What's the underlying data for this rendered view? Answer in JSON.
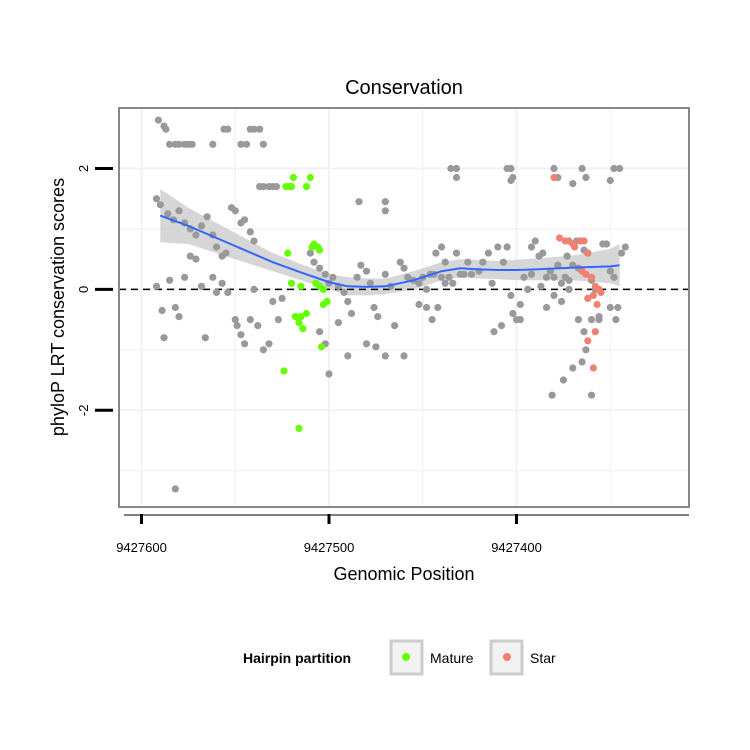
{
  "chart_data": {
    "type": "scatter",
    "title": "Conservation",
    "xlabel": "Genomic Position",
    "ylabel": "phyloP LRT conservation scores",
    "x_reversed": true,
    "xlim": [
      9427308,
      9427612
    ],
    "ylim": [
      -3.6,
      3.0
    ],
    "x_ticks": [
      {
        "value": 9427600,
        "label": "9427600"
      },
      {
        "value": 9427500,
        "label": "9427500"
      },
      {
        "value": 9427400,
        "label": "9427400"
      }
    ],
    "y_ticks": [
      {
        "value": -2,
        "label": "-2"
      },
      {
        "value": 0,
        "label": "0"
      },
      {
        "value": 2,
        "label": "2"
      }
    ],
    "hline": {
      "y": 0,
      "style": "dashed"
    },
    "legend": {
      "title": "Hairpin partition",
      "position": "bottom",
      "entries": [
        {
          "name": "Mature",
          "color": "#66ff00"
        },
        {
          "name": "Star",
          "color": "#f08070"
        }
      ]
    },
    "colors": {
      "other": "#999999",
      "Mature": "#66ff00",
      "Star": "#f08070",
      "smooth": "#3366ff",
      "band": "#cccccc",
      "panel_border": "#888888"
    },
    "smooth": {
      "x": [
        9427590,
        9427575,
        9427560,
        9427545,
        9427530,
        9427515,
        9427500,
        9427490,
        9427480,
        9427470,
        9427455,
        9427440,
        9427430,
        9427420,
        9427410,
        9427400,
        9427390,
        9427370,
        9427350,
        9427345
      ],
      "y": [
        1.22,
        1.05,
        0.85,
        0.65,
        0.45,
        0.28,
        0.12,
        0.05,
        0.04,
        0.05,
        0.15,
        0.3,
        0.35,
        0.33,
        0.32,
        0.32,
        0.33,
        0.36,
        0.38,
        0.4
      ],
      "lo": [
        0.78,
        0.75,
        0.6,
        0.45,
        0.3,
        0.15,
        0.0,
        -0.1,
        -0.1,
        -0.08,
        0.0,
        0.15,
        0.2,
        0.18,
        0.17,
        0.15,
        0.15,
        0.15,
        0.1,
        0.05
      ],
      "hi": [
        1.66,
        1.35,
        1.1,
        0.85,
        0.6,
        0.42,
        0.25,
        0.2,
        0.18,
        0.18,
        0.3,
        0.45,
        0.5,
        0.48,
        0.47,
        0.49,
        0.51,
        0.56,
        0.67,
        0.75
      ]
    },
    "series": [
      {
        "group": "other",
        "points": [
          [
            9427591,
            2.8
          ],
          [
            9427588,
            2.7
          ],
          [
            9427587,
            2.65
          ],
          [
            9427585,
            2.4
          ],
          [
            9427582,
            2.4
          ],
          [
            9427580,
            2.4
          ],
          [
            9427577,
            2.4
          ],
          [
            9427575,
            2.4
          ],
          [
            9427573,
            2.4
          ],
          [
            9427562,
            2.4
          ],
          [
            9427556,
            2.65
          ],
          [
            9427554,
            2.65
          ],
          [
            9427547,
            2.4
          ],
          [
            9427544,
            2.4
          ],
          [
            9427542,
            2.65
          ],
          [
            9427540,
            2.65
          ],
          [
            9427537,
            2.65
          ],
          [
            9427535,
            2.4
          ],
          [
            9427592,
            1.5
          ],
          [
            9427590,
            1.4
          ],
          [
            9427586,
            1.25
          ],
          [
            9427583,
            1.15
          ],
          [
            9427580,
            1.3
          ],
          [
            9427577,
            1.1
          ],
          [
            9427574,
            1.0
          ],
          [
            9427571,
            0.9
          ],
          [
            9427568,
            1.05
          ],
          [
            9427565,
            1.2
          ],
          [
            9427562,
            0.9
          ],
          [
            9427560,
            0.7
          ],
          [
            9427557,
            0.55
          ],
          [
            9427555,
            0.6
          ],
          [
            9427552,
            1.35
          ],
          [
            9427550,
            1.3
          ],
          [
            9427547,
            1.1
          ],
          [
            9427545,
            1.15
          ],
          [
            9427542,
            0.95
          ],
          [
            9427540,
            0.8
          ],
          [
            9427592,
            0.05
          ],
          [
            9427589,
            -0.35
          ],
          [
            9427588,
            -0.8
          ],
          [
            9427585,
            0.15
          ],
          [
            9427582,
            -0.3
          ],
          [
            9427580,
            -0.45
          ],
          [
            9427577,
            0.2
          ],
          [
            9427574,
            0.55
          ],
          [
            9427571,
            0.5
          ],
          [
            9427568,
            0.05
          ],
          [
            9427566,
            -0.8
          ],
          [
            9427562,
            0.2
          ],
          [
            9427560,
            -0.05
          ],
          [
            9427557,
            0.1
          ],
          [
            9427554,
            -0.05
          ],
          [
            9427550,
            -0.5
          ],
          [
            9427549,
            -0.6
          ],
          [
            9427547,
            -0.75
          ],
          [
            9427545,
            -0.9
          ],
          [
            9427542,
            -0.5
          ],
          [
            9427540,
            0.0
          ],
          [
            9427538,
            -0.6
          ],
          [
            9427535,
            -1.0
          ],
          [
            9427532,
            -0.9
          ],
          [
            9427530,
            -0.2
          ],
          [
            9427527,
            -0.5
          ],
          [
            9427525,
            -0.15
          ],
          [
            9427537,
            1.7
          ],
          [
            9427535,
            1.7
          ],
          [
            9427532,
            1.7
          ],
          [
            9427530,
            1.7
          ],
          [
            9427528,
            1.7
          ],
          [
            9427582,
            -3.3
          ],
          [
            9427510,
            0.6
          ],
          [
            9427508,
            0.45
          ],
          [
            9427505,
            0.35
          ],
          [
            9427502,
            0.25
          ],
          [
            9427500,
            0.1
          ],
          [
            9427498,
            0.2
          ],
          [
            9427495,
            0.05
          ],
          [
            9427492,
            -0.05
          ],
          [
            9427490,
            -0.2
          ],
          [
            9427488,
            -0.4
          ],
          [
            9427485,
            0.2
          ],
          [
            9427483,
            0.4
          ],
          [
            9427480,
            0.3
          ],
          [
            9427478,
            0.1
          ],
          [
            9427476,
            -0.3
          ],
          [
            9427474,
            -0.45
          ],
          [
            9427470,
            0.25
          ],
          [
            9427467,
            0.05
          ],
          [
            9427465,
            -0.6
          ],
          [
            9427462,
            0.45
          ],
          [
            9427460,
            0.35
          ],
          [
            9427458,
            0.2
          ],
          [
            9427455,
            0.15
          ],
          [
            9427452,
            0.1
          ],
          [
            9427450,
            0.2
          ],
          [
            9427448,
            0.0
          ],
          [
            9427446,
            0.25
          ],
          [
            9427444,
            0.25
          ],
          [
            9427442,
            -0.3
          ],
          [
            9427440,
            0.2
          ],
          [
            9427438,
            0.1
          ],
          [
            9427436,
            0.2
          ],
          [
            9427434,
            0.1
          ],
          [
            9427432,
            0.6
          ],
          [
            9427430,
            0.25
          ],
          [
            9427428,
            0.25
          ],
          [
            9427426,
            0.45
          ],
          [
            9427424,
            0.25
          ],
          [
            9427505,
            -0.7
          ],
          [
            9427502,
            -0.9
          ],
          [
            9427500,
            -1.4
          ],
          [
            9427495,
            -0.55
          ],
          [
            9427490,
            -1.1
          ],
          [
            9427480,
            -0.9
          ],
          [
            9427475,
            -0.95
          ],
          [
            9427470,
            -1.1
          ],
          [
            9427460,
            -1.1
          ],
          [
            9427452,
            -0.25
          ],
          [
            9427448,
            -0.3
          ],
          [
            9427445,
            -0.5
          ],
          [
            9427443,
            0.6
          ],
          [
            9427440,
            0.7
          ],
          [
            9427438,
            0.45
          ],
          [
            9427484,
            1.45
          ],
          [
            9427470,
            1.45
          ],
          [
            9427470,
            1.3
          ],
          [
            9427435,
            2.0
          ],
          [
            9427432,
            2.0
          ],
          [
            9427432,
            1.85
          ],
          [
            9427405,
            2.0
          ],
          [
            9427403,
            2.0
          ],
          [
            9427402,
            1.85
          ],
          [
            9427403,
            1.8
          ],
          [
            9427380,
            2.0
          ],
          [
            9427378,
            1.85
          ],
          [
            9427370,
            1.75
          ],
          [
            9427365,
            2.0
          ],
          [
            9427363,
            1.85
          ],
          [
            9427348,
            2.0
          ],
          [
            9427345,
            2.0
          ],
          [
            9427350,
            1.8
          ],
          [
            9427420,
            0.3
          ],
          [
            9427418,
            0.45
          ],
          [
            9427415,
            0.6
          ],
          [
            9427413,
            0.1
          ],
          [
            9427410,
            0.7
          ],
          [
            9427407,
            0.45
          ],
          [
            9427405,
            0.7
          ],
          [
            9427402,
            -0.4
          ],
          [
            9427400,
            -0.5
          ],
          [
            9427398,
            -0.5
          ],
          [
            9427396,
            0.2
          ],
          [
            9427394,
            0.0
          ],
          [
            9427392,
            0.7
          ],
          [
            9427390,
            0.8
          ],
          [
            9427388,
            0.55
          ],
          [
            9427386,
            0.6
          ],
          [
            9427384,
            0.2
          ],
          [
            9427382,
            0.3
          ],
          [
            9427380,
            0.2
          ],
          [
            9427378,
            0.4
          ],
          [
            9427376,
            0.1
          ],
          [
            9427374,
            0.2
          ],
          [
            9427372,
            0.15
          ],
          [
            9427370,
            0.4
          ],
          [
            9427368,
            0.8
          ],
          [
            9427366,
            0.8
          ],
          [
            9427364,
            0.65
          ],
          [
            9427362,
            0.6
          ],
          [
            9427360,
            0.15
          ],
          [
            9427358,
            0.0
          ],
          [
            9427356,
            -0.5
          ],
          [
            9427354,
            0.75
          ],
          [
            9427352,
            0.75
          ],
          [
            9427350,
            0.3
          ],
          [
            9427348,
            0.2
          ],
          [
            9427346,
            -0.3
          ],
          [
            9427344,
            0.6
          ],
          [
            9427342,
            0.7
          ],
          [
            9427412,
            -0.7
          ],
          [
            9427408,
            -0.6
          ],
          [
            9427403,
            -0.1
          ],
          [
            9427398,
            -0.25
          ],
          [
            9427392,
            0.25
          ],
          [
            9427387,
            0.05
          ],
          [
            9427384,
            -0.3
          ],
          [
            9427380,
            -0.1
          ],
          [
            9427376,
            -0.2
          ],
          [
            9427372,
            0.0
          ],
          [
            9427367,
            -0.5
          ],
          [
            9427364,
            -0.7
          ],
          [
            9427363,
            -1.0
          ],
          [
            9427360,
            -0.5
          ],
          [
            9427356,
            -0.45
          ],
          [
            9427350,
            -0.3
          ],
          [
            9427347,
            -0.5
          ],
          [
            9427381,
            -1.75
          ],
          [
            9427375,
            -1.5
          ],
          [
            9427370,
            -1.3
          ],
          [
            9427365,
            -1.2
          ],
          [
            9427360,
            -1.75
          ],
          [
            9427373,
            0.55
          ],
          [
            9427367,
            0.35
          ]
        ]
      },
      {
        "group": "Mature",
        "points": [
          [
            9427519,
            1.85
          ],
          [
            9427510,
            1.85
          ],
          [
            9427523,
            1.7
          ],
          [
            9427521,
            1.7
          ],
          [
            9427520,
            1.7
          ],
          [
            9427512,
            1.7
          ],
          [
            9427522,
            0.6
          ],
          [
            9427509,
            0.7
          ],
          [
            9427508,
            0.75
          ],
          [
            9427506,
            0.7
          ],
          [
            9427505,
            0.65
          ],
          [
            9427507,
            0.1
          ],
          [
            9427505,
            0.05
          ],
          [
            9427503,
            0.0
          ],
          [
            9427501,
            -0.2
          ],
          [
            9427503,
            -0.25
          ],
          [
            9427520,
            0.1
          ],
          [
            9427515,
            0.05
          ],
          [
            9427512,
            -0.4
          ],
          [
            9427515,
            -0.45
          ],
          [
            9427518,
            -0.45
          ],
          [
            9427516,
            -0.55
          ],
          [
            9427514,
            -0.65
          ],
          [
            9427504,
            -0.95
          ],
          [
            9427524,
            -1.35
          ],
          [
            9427516,
            -2.3
          ]
        ]
      },
      {
        "group": "Star",
        "points": [
          [
            9427380,
            1.85
          ],
          [
            9427377,
            0.85
          ],
          [
            9427374,
            0.8
          ],
          [
            9427372,
            0.8
          ],
          [
            9427370,
            0.75
          ],
          [
            9427369,
            0.7
          ],
          [
            9427366,
            0.8
          ],
          [
            9427364,
            0.8
          ],
          [
            9427362,
            0.6
          ],
          [
            9427365,
            0.3
          ],
          [
            9427363,
            0.25
          ],
          [
            9427360,
            0.2
          ],
          [
            9427358,
            0.05
          ],
          [
            9427356,
            0.0
          ],
          [
            9427355,
            -0.05
          ],
          [
            9427359,
            -0.1
          ],
          [
            9427362,
            -0.15
          ],
          [
            9427357,
            -0.25
          ],
          [
            9427362,
            -0.85
          ],
          [
            9427358,
            -0.7
          ],
          [
            9427359,
            -1.3
          ]
        ]
      }
    ]
  }
}
